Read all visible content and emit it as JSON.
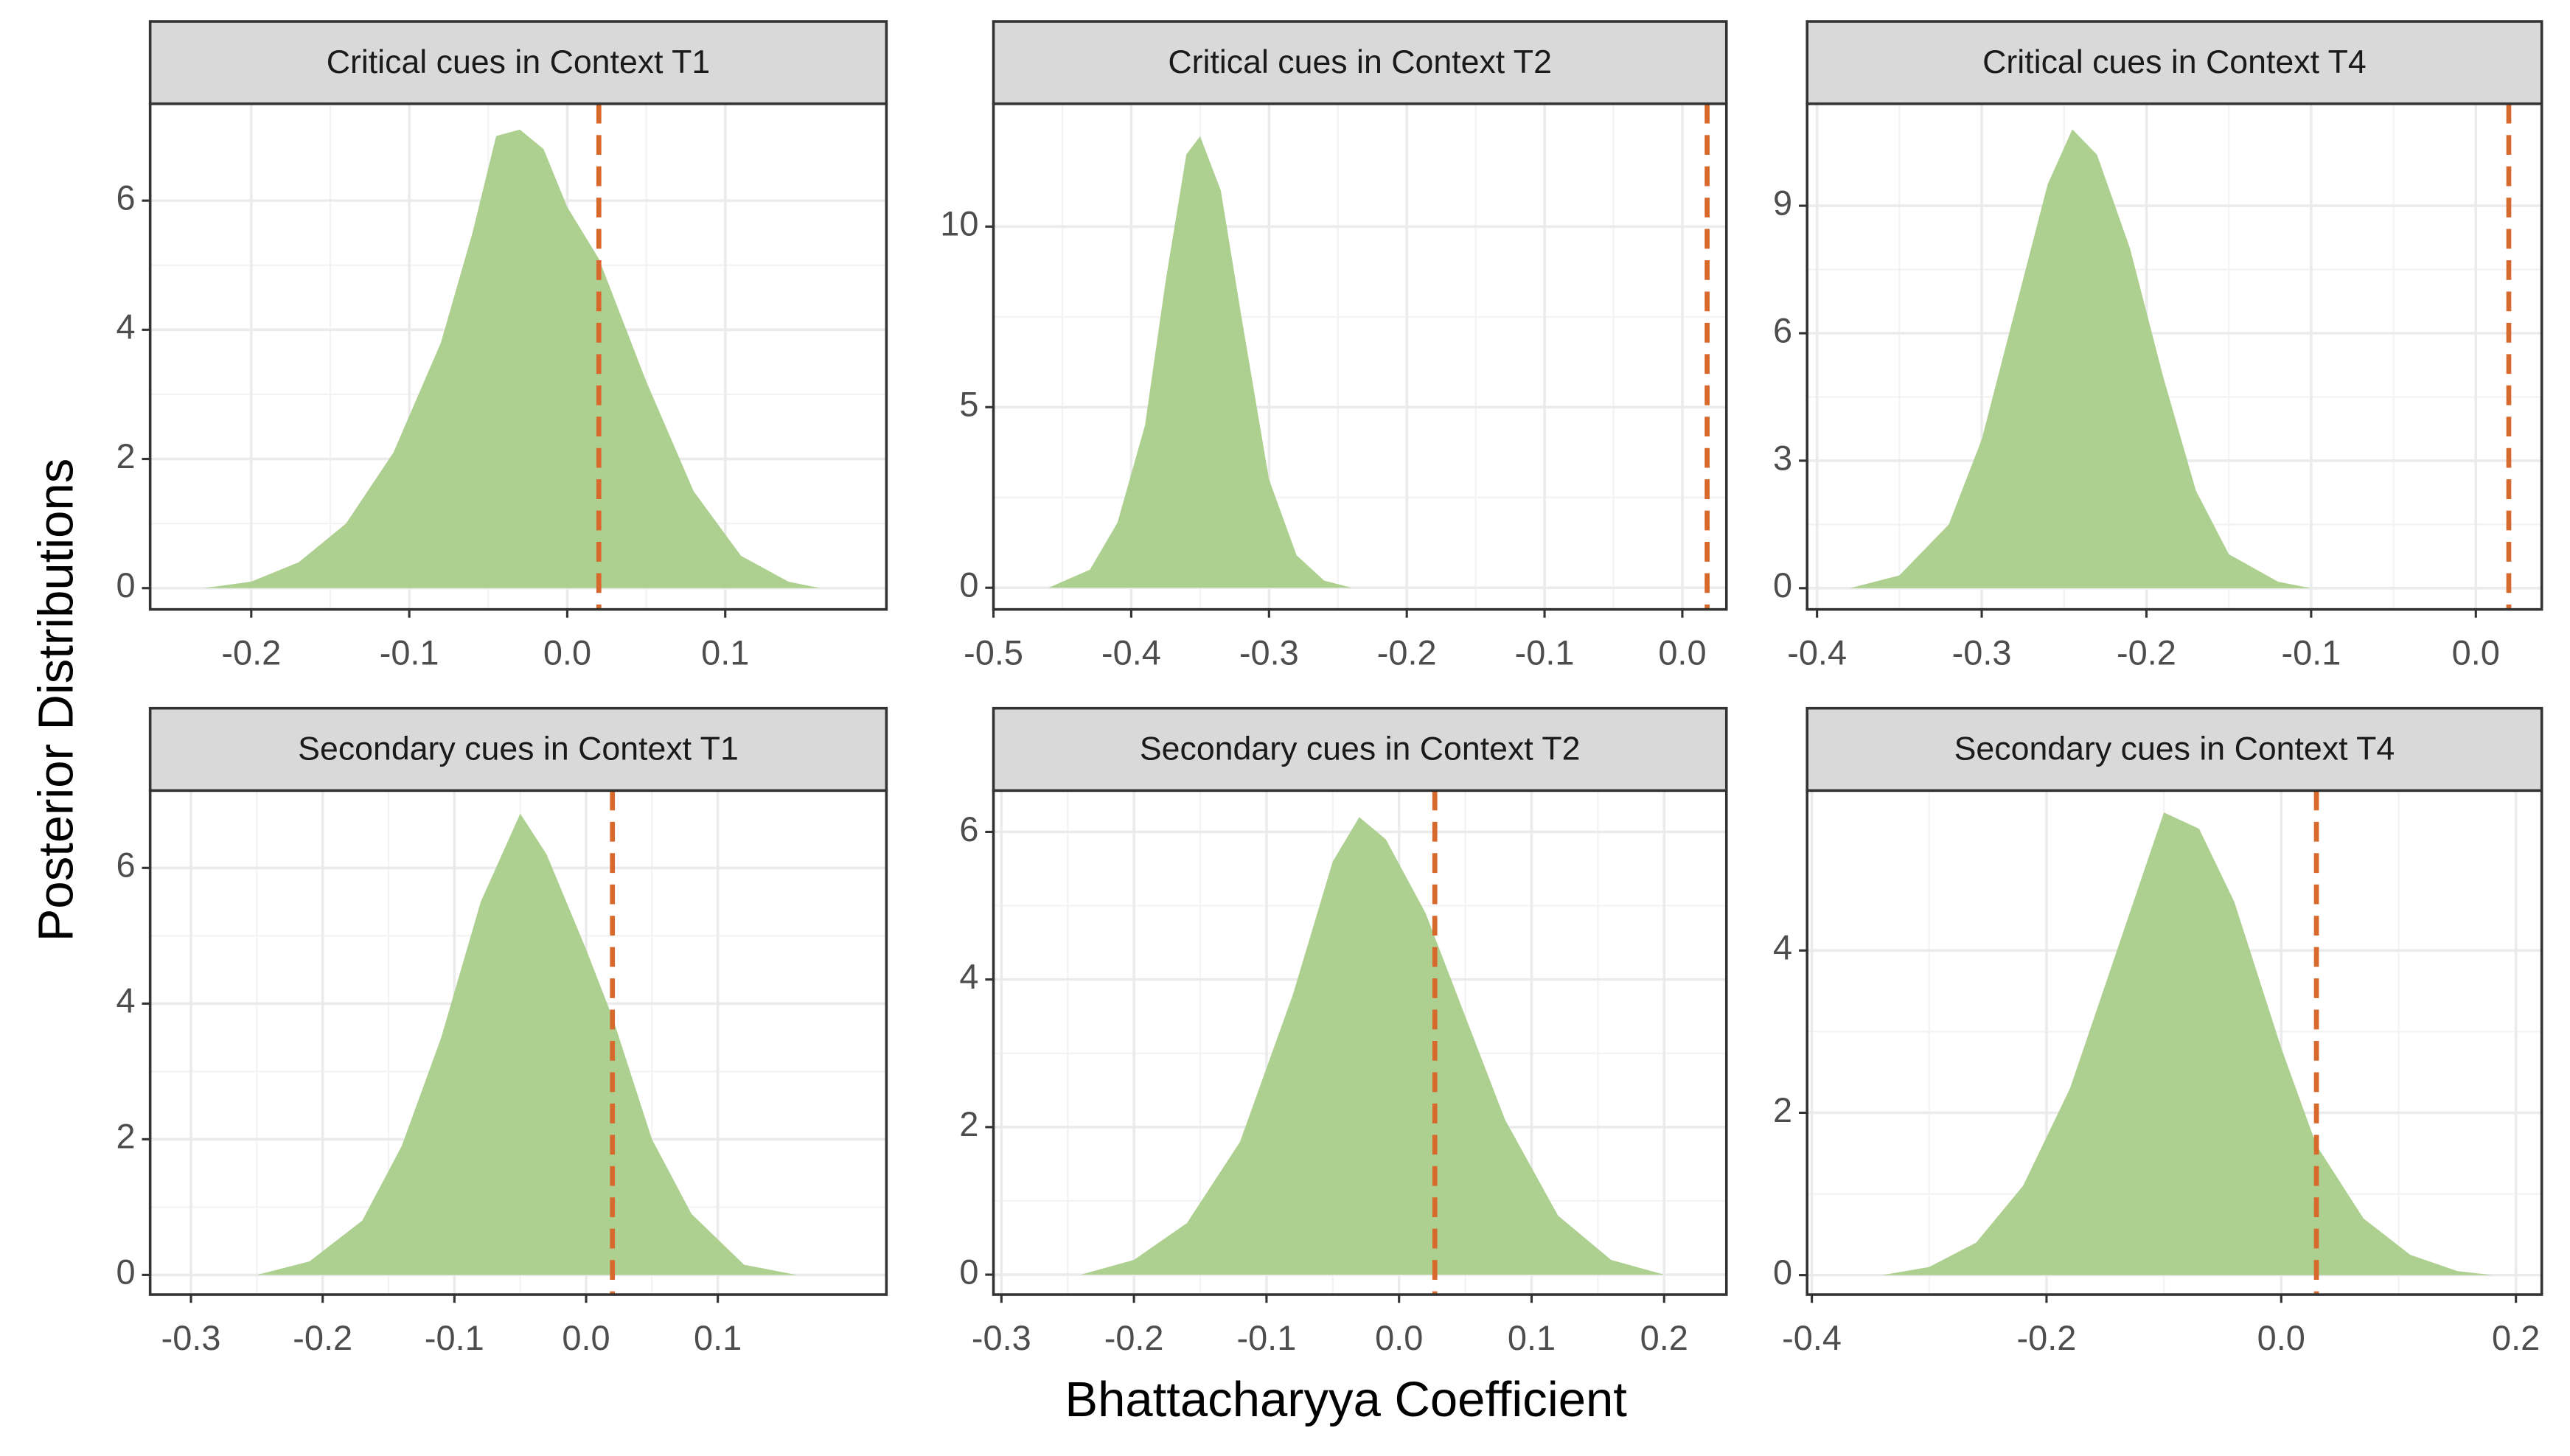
{
  "xlabel": "Bhattacharyya Coefficient",
  "ylabel": "Posterior Distributions",
  "chart_data": [
    {
      "type": "area",
      "title": "Critical cues in Context T1",
      "color": "#a9cd8a",
      "x": [
        -0.23,
        -0.2,
        -0.17,
        -0.14,
        -0.11,
        -0.08,
        -0.06,
        -0.045,
        -0.03,
        -0.015,
        0,
        0.02,
        0.05,
        0.08,
        0.11,
        0.14,
        0.16
      ],
      "values": [
        0,
        0.1,
        0.4,
        1.0,
        2.1,
        3.8,
        5.5,
        7.0,
        7.1,
        6.8,
        5.9,
        5.1,
        3.2,
        1.5,
        0.5,
        0.1,
        0
      ],
      "ref_line": 0.02,
      "ref_color": "#d8692c",
      "xlim": [
        -0.264,
        0.202
      ],
      "ylim": [
        -0.33,
        7.5
      ],
      "xticks": [
        -0.2,
        -0.1,
        {
          "value": 0,
          "label": "0.0"
        },
        0.1
      ],
      "yticks": [
        0,
        2,
        4,
        6
      ]
    },
    {
      "type": "area",
      "title": "Critical cues in Context T2",
      "color": "#a9cd8a",
      "x": [
        -0.46,
        -0.43,
        -0.41,
        -0.39,
        -0.375,
        -0.36,
        -0.35,
        -0.335,
        -0.32,
        -0.3,
        -0.28,
        -0.26,
        -0.24
      ],
      "values": [
        0,
        0.5,
        1.8,
        4.5,
        8.5,
        12.0,
        12.5,
        11.0,
        7.5,
        3.0,
        0.9,
        0.2,
        0
      ],
      "ref_line": 0.018,
      "ref_color": "#d8692c",
      "xlim": [
        -0.5,
        0.032
      ],
      "ylim": [
        -0.6,
        13.4
      ],
      "xticks": [
        -0.5,
        -0.4,
        -0.3,
        -0.2,
        -0.1,
        {
          "value": 0,
          "label": "0.0"
        }
      ],
      "yticks": [
        0,
        5,
        10
      ]
    },
    {
      "type": "area",
      "title": "Critical cues in Context T4",
      "color": "#a9cd8a",
      "x": [
        -0.38,
        -0.35,
        -0.32,
        -0.3,
        -0.28,
        -0.26,
        -0.245,
        -0.23,
        -0.21,
        -0.19,
        -0.17,
        -0.15,
        -0.12,
        -0.1
      ],
      "values": [
        0,
        0.3,
        1.5,
        3.5,
        6.5,
        9.5,
        10.8,
        10.2,
        8.0,
        5.0,
        2.3,
        0.8,
        0.15,
        0
      ],
      "ref_line": 0.02,
      "ref_color": "#d8692c",
      "xlim": [
        -0.406,
        0.04
      ],
      "ylim": [
        -0.5,
        11.4
      ],
      "xticks": [
        -0.4,
        -0.3,
        -0.2,
        -0.1,
        {
          "value": 0,
          "label": "0.0"
        }
      ],
      "yticks": [
        0,
        3,
        6,
        9
      ]
    },
    {
      "type": "area",
      "title": "Secondary cues in Context T1",
      "color": "#a9cd8a",
      "x": [
        -0.25,
        -0.21,
        -0.17,
        -0.14,
        -0.11,
        -0.08,
        -0.05,
        -0.03,
        0,
        0.02,
        0.05,
        0.08,
        0.12,
        0.16
      ],
      "values": [
        0,
        0.2,
        0.8,
        1.9,
        3.5,
        5.5,
        6.8,
        6.2,
        4.8,
        3.8,
        2.0,
        0.9,
        0.15,
        0
      ],
      "ref_line": 0.02,
      "ref_color": "#d8692c",
      "xlim": [
        -0.331,
        0.228
      ],
      "ylim": [
        -0.29,
        7.14
      ],
      "xticks": [
        -0.3,
        -0.2,
        -0.1,
        {
          "value": 0,
          "label": "0.0"
        },
        0.1
      ],
      "yticks": [
        0,
        2,
        4,
        6
      ]
    },
    {
      "type": "area",
      "title": "Secondary cues in Context T2",
      "color": "#a9cd8a",
      "x": [
        -0.24,
        -0.2,
        -0.16,
        -0.12,
        -0.08,
        -0.05,
        -0.03,
        -0.01,
        0.02,
        0.05,
        0.08,
        0.12,
        0.16,
        0.2
      ],
      "values": [
        0,
        0.2,
        0.7,
        1.8,
        3.8,
        5.6,
        6.2,
        5.9,
        4.9,
        3.5,
        2.1,
        0.8,
        0.2,
        0
      ],
      "ref_line": 0.027,
      "ref_color": "#d8692c",
      "xlim": [
        -0.306,
        0.247
      ],
      "ylim": [
        -0.27,
        6.56
      ],
      "xticks": [
        -0.3,
        -0.2,
        -0.1,
        {
          "value": 0,
          "label": "0.0"
        },
        0.1,
        0.2
      ],
      "yticks": [
        0,
        2,
        4,
        6
      ]
    },
    {
      "type": "area",
      "title": "Secondary cues in Context T4",
      "color": "#a9cd8a",
      "x": [
        -0.34,
        -0.3,
        -0.26,
        -0.22,
        -0.18,
        -0.14,
        -0.1,
        -0.07,
        -0.04,
        0,
        0.03,
        0.07,
        0.11,
        0.15,
        0.18
      ],
      "values": [
        0,
        0.1,
        0.4,
        1.1,
        2.3,
        4.0,
        5.7,
        5.5,
        4.6,
        2.8,
        1.6,
        0.7,
        0.25,
        0.05,
        0
      ],
      "ref_line": 0.03,
      "ref_color": "#d8692c",
      "xlim": [
        -0.404,
        0.222
      ],
      "ylim": [
        -0.24,
        5.97
      ],
      "xticks": [
        -0.4,
        -0.2,
        {
          "value": 0,
          "label": "0.0"
        },
        0.2
      ],
      "yticks": [
        0,
        2,
        4
      ]
    }
  ]
}
